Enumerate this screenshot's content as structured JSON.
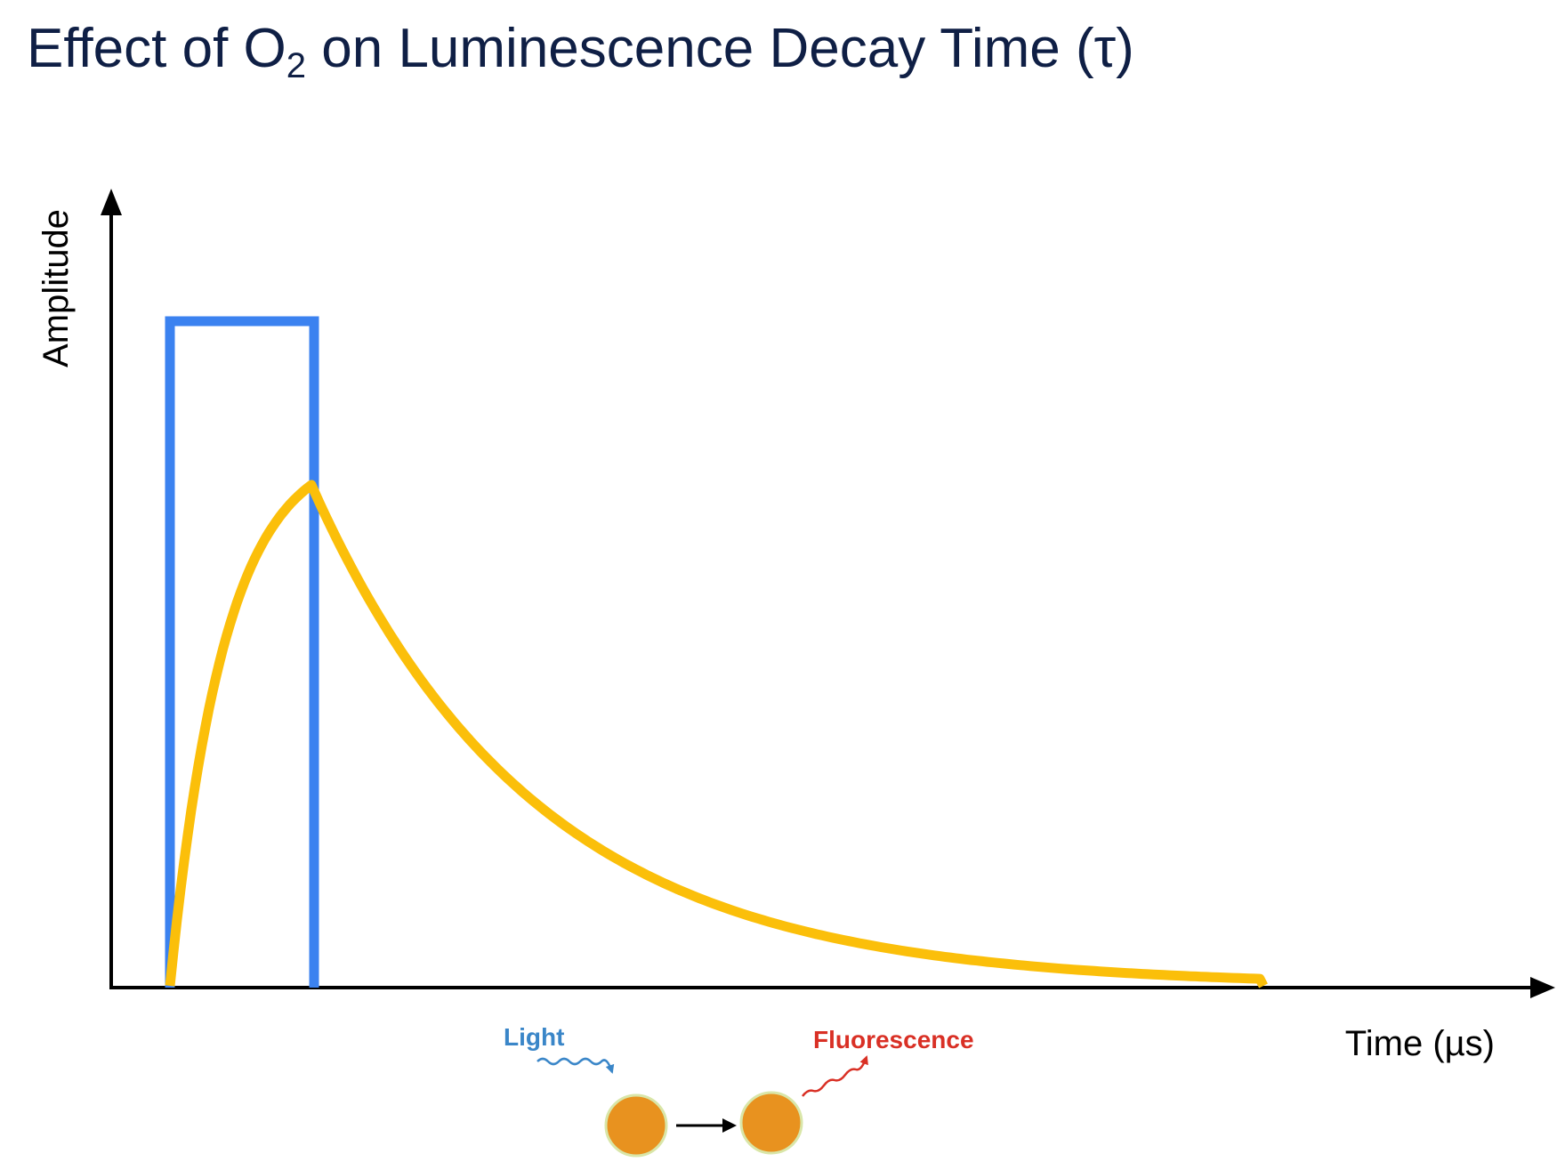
{
  "title": {
    "prefix": "Effect of O",
    "subscript": "2",
    "suffix": " on Luminescence Decay Time (τ)"
  },
  "axes": {
    "y_label": "Amplitude",
    "x_label": "Time (µs)"
  },
  "signals": [
    {
      "id": "excitation_pulse",
      "shape": "rectangular pulse",
      "color": "#3b82f0"
    },
    {
      "id": "luminescence",
      "shape": "rise then exponential decay",
      "color": "#fbbf0a"
    }
  ],
  "illustration": {
    "light_label": "Light",
    "fluorescence_label": "Fluorescence",
    "colors": {
      "light": "#3a86c8",
      "fluorescence": "#d93025",
      "molecule": "#e8921f",
      "molecule_outline": "#d9e6a8"
    }
  }
}
